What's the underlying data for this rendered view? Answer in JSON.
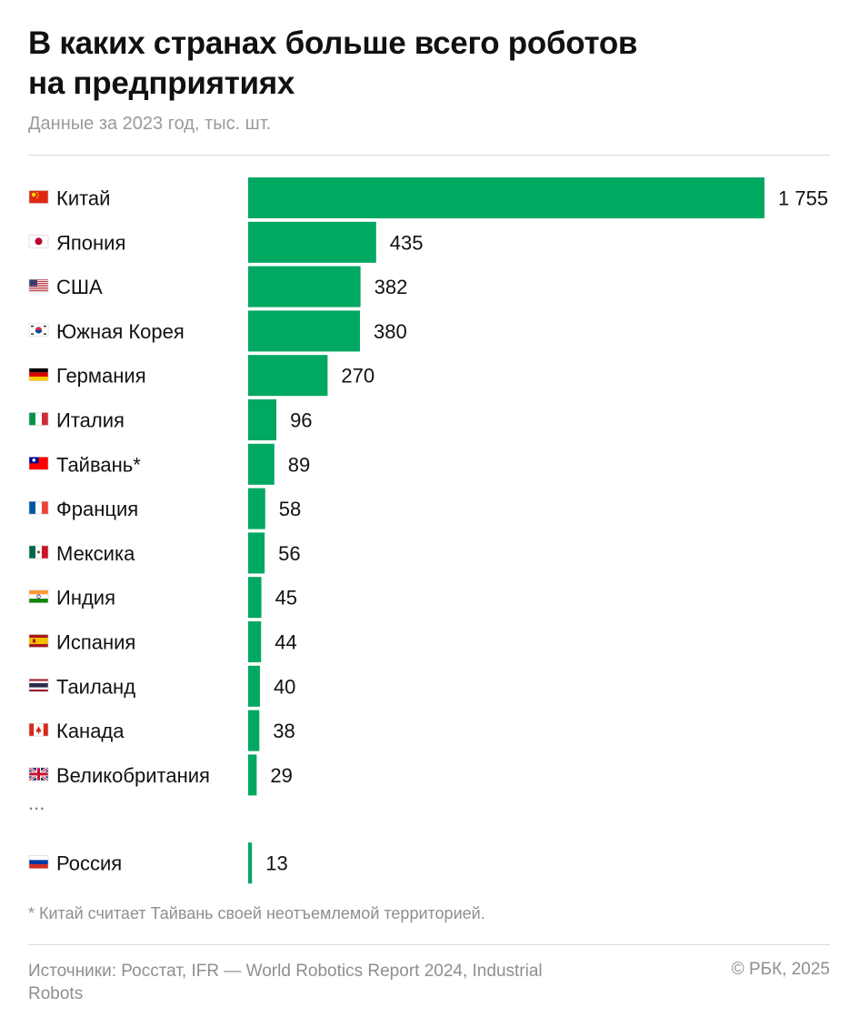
{
  "header": {
    "title_line1": "В каких странах больше всего роботов",
    "title_line2": "на предприятиях",
    "subtitle": "Данные за 2023 год, тыс. шт."
  },
  "colors": {
    "bar": "#00a862"
  },
  "chart_data": {
    "type": "bar",
    "orientation": "horizontal",
    "title": "В каких странах больше всего роботов на предприятиях",
    "subtitle": "Данные за 2023 год, тыс. шт.",
    "xlabel": "",
    "ylabel": "",
    "xlim": [
      0,
      1755
    ],
    "categories": [
      "Китай",
      "Япония",
      "США",
      "Южная Корея",
      "Германия",
      "Италия",
      "Тайвань*",
      "Франция",
      "Мексика",
      "Индия",
      "Испания",
      "Таиланд",
      "Канада",
      "Великобритания",
      "Россия"
    ],
    "values": [
      1755,
      435,
      382,
      380,
      270,
      96,
      89,
      58,
      56,
      45,
      44,
      40,
      38,
      29,
      13
    ],
    "value_labels": [
      "1 755",
      "435",
      "382",
      "380",
      "270",
      "96",
      "89",
      "58",
      "56",
      "45",
      "44",
      "40",
      "38",
      "29",
      "13"
    ],
    "flags": [
      "china-flag-icon",
      "japan-flag-icon",
      "usa-flag-icon",
      "south-korea-flag-icon",
      "germany-flag-icon",
      "italy-flag-icon",
      "taiwan-flag-icon",
      "france-flag-icon",
      "mexico-flag-icon",
      "india-flag-icon",
      "spain-flag-icon",
      "thailand-flag-icon",
      "canada-flag-icon",
      "uk-flag-icon",
      "russia-flag-icon"
    ],
    "gap_marker": "...",
    "gap_before_index": 14
  },
  "footer": {
    "footnote": "* Китай считает Тайвань своей неотъемлемой территорией.",
    "source": "Источники: Росстат, IFR — World Robotics Report 2024, Industrial Robots",
    "copyright": "© РБК, 2025"
  }
}
